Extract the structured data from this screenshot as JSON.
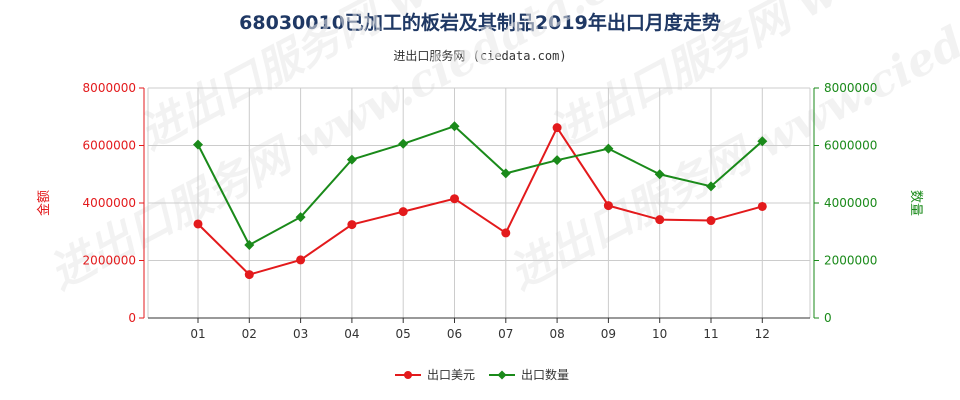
{
  "title": "68030010已加工的板岩及其制品2019年出口月度走势",
  "subtitle": "进出口服务网 (ciedata.com)",
  "watermark": "进出口服务网 www.ciedata.com",
  "colors": {
    "value": "#e31a1c",
    "quantity": "#1a8a1a",
    "title": "#1f3864",
    "grid": "#cccccc"
  },
  "chart_data": {
    "type": "line",
    "categories": [
      "01",
      "02",
      "03",
      "04",
      "05",
      "06",
      "07",
      "08",
      "09",
      "10",
      "11",
      "12"
    ],
    "y_left": {
      "label": "金额",
      "ylim": [
        0,
        8000000
      ],
      "ticks": [
        "0",
        "2000000",
        "4000000",
        "6000000",
        "8000000"
      ]
    },
    "y_right": {
      "label": "数量",
      "ylim": [
        0,
        8000000
      ],
      "ticks": [
        "0",
        "2000000",
        "4000000",
        "6000000",
        "8000000"
      ]
    },
    "grid": true,
    "legend_position": "bottom-center",
    "series": [
      {
        "name": "出口美元",
        "axis": "left",
        "color": "#e31a1c",
        "values": [
          3270000,
          1510000,
          2020000,
          3250000,
          3700000,
          4150000,
          2960000,
          6620000,
          3910000,
          3420000,
          3390000,
          3880000
        ]
      },
      {
        "name": "出口数量",
        "axis": "right",
        "color": "#1a8a1a",
        "values": [
          6030000,
          2540000,
          3510000,
          5510000,
          6060000,
          6670000,
          5030000,
          5490000,
          5890000,
          5000000,
          4580000,
          6150000
        ]
      }
    ]
  }
}
